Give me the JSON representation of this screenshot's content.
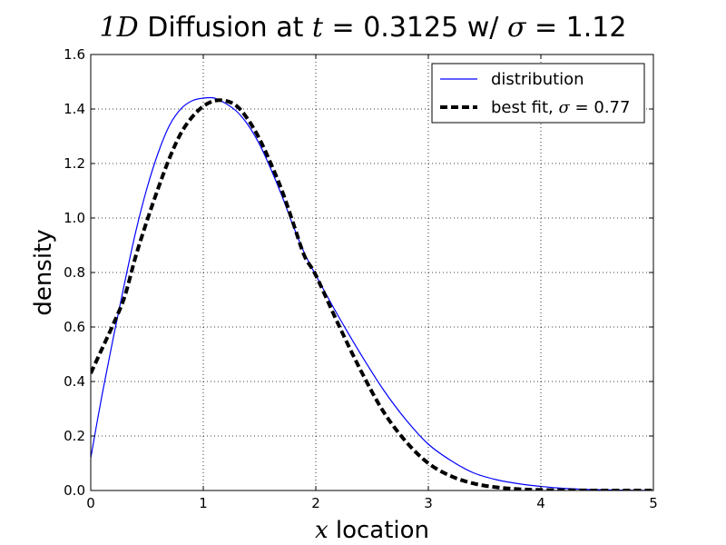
{
  "chart_data": {
    "type": "line",
    "title": {
      "var_dim": "1D",
      "main": "Diffusion at",
      "var_t": "t",
      "eq": "=",
      "t_value": "0.3125",
      "w": "w/",
      "var_sigma": "σ",
      "sigma_value": "1.12"
    },
    "xlabel": {
      "var": "x",
      "text": "location"
    },
    "ylabel": "density",
    "xlim": [
      0,
      5
    ],
    "ylim": [
      0,
      1.6
    ],
    "x_ticks": [
      0,
      1,
      2,
      3,
      4,
      5
    ],
    "x_tick_labels": [
      "0",
      "1",
      "2",
      "3",
      "4",
      "5"
    ],
    "y_ticks": [
      0,
      0.2,
      0.4,
      0.6,
      0.8,
      1.0,
      1.2,
      1.4,
      1.6
    ],
    "y_tick_labels": [
      "0.0",
      "0.2",
      "0.4",
      "0.6",
      "0.8",
      "1.0",
      "1.2",
      "1.4",
      "1.6"
    ],
    "grid": true,
    "legend_position": "top-right",
    "series": [
      {
        "name": "distribution",
        "color": "#0000ff",
        "style": "solid",
        "x": [
          0,
          0.1,
          0.2,
          0.3,
          0.4,
          0.5,
          0.6,
          0.7,
          0.8,
          0.9,
          1.0,
          1.1,
          1.2,
          1.3,
          1.4,
          1.5,
          1.6,
          1.7,
          1.8,
          1.9,
          2.0,
          2.2,
          2.4,
          2.6,
          2.8,
          3.0,
          3.2,
          3.4,
          3.6,
          3.8,
          4.0,
          4.2,
          4.5,
          5.0
        ],
        "y": [
          0.12,
          0.35,
          0.56,
          0.76,
          0.95,
          1.11,
          1.24,
          1.34,
          1.4,
          1.43,
          1.44,
          1.44,
          1.42,
          1.39,
          1.34,
          1.27,
          1.18,
          1.08,
          0.97,
          0.87,
          0.79,
          0.64,
          0.5,
          0.37,
          0.26,
          0.17,
          0.11,
          0.065,
          0.04,
          0.025,
          0.015,
          0.008,
          0.003,
          0.0
        ]
      },
      {
        "name_prefix": "best fit,",
        "name_var": "σ",
        "name_eq": "=",
        "name_value": "0.77",
        "color": "#000000",
        "style": "dashed",
        "x": [
          0,
          0.1,
          0.2,
          0.3,
          0.4,
          0.5,
          0.6,
          0.7,
          0.8,
          0.9,
          1.0,
          1.1,
          1.2,
          1.3,
          1.4,
          1.5,
          1.6,
          1.7,
          1.8,
          1.9,
          2.0,
          2.2,
          2.4,
          2.6,
          2.8,
          3.0,
          3.2,
          3.4,
          3.6,
          3.8,
          4.0,
          4.5,
          5.0
        ],
        "y": [
          0.43,
          0.52,
          0.61,
          0.71,
          0.86,
          0.99,
          1.11,
          1.22,
          1.31,
          1.37,
          1.41,
          1.43,
          1.43,
          1.41,
          1.36,
          1.29,
          1.2,
          1.1,
          0.98,
          0.86,
          0.79,
          0.61,
          0.44,
          0.29,
          0.18,
          0.1,
          0.053,
          0.026,
          0.012,
          0.005,
          0.002,
          0.0,
          0.0
        ]
      }
    ]
  }
}
